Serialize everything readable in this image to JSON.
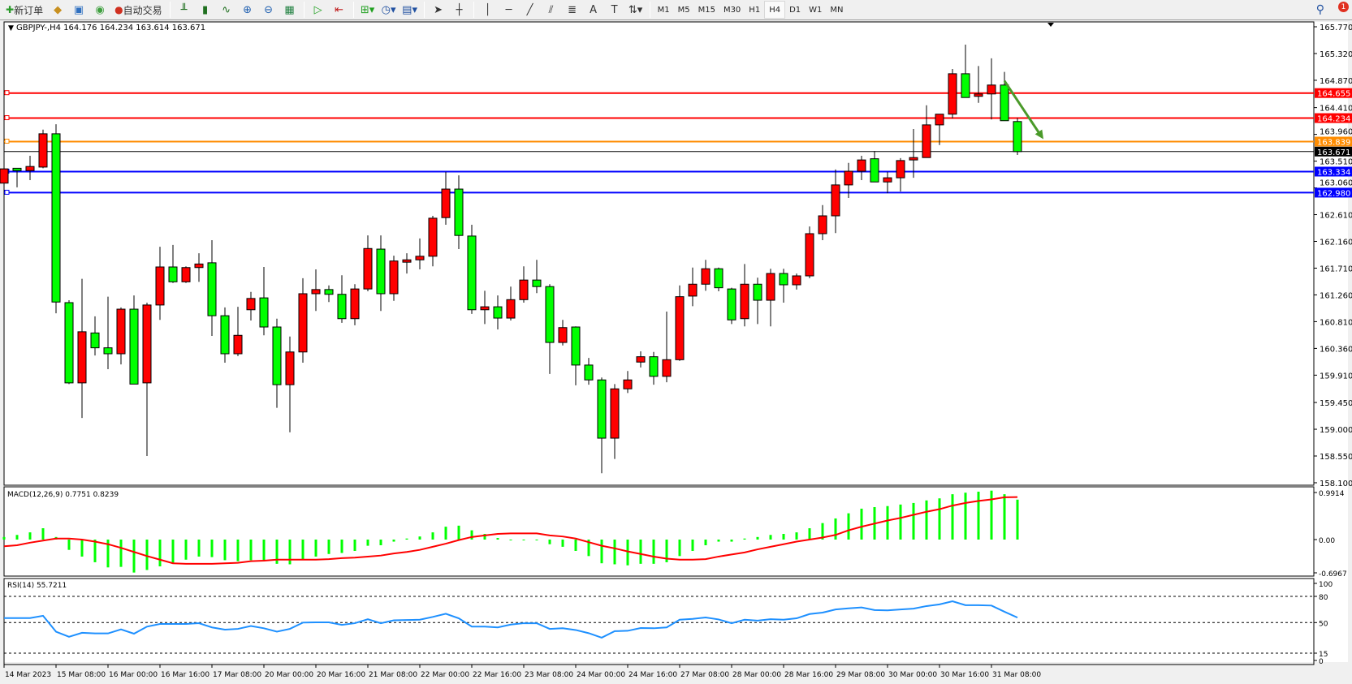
{
  "toolbar": {
    "new_order": "新订单",
    "auto_trading": "自动交易",
    "icons": [
      "new-order-icon",
      "meta-editor-icon",
      "navigator-icon",
      "signal-icon",
      "auto-trading-icon",
      "bar-chart-icon",
      "candlestick-icon",
      "line-chart-icon",
      "zoom-in-icon",
      "zoom-out-icon",
      "tile-windows-icon",
      "auto-scroll-icon",
      "chart-shift-icon",
      "indicators-icon",
      "periods-icon",
      "templates-icon",
      "cursor-icon",
      "crosshair-icon",
      "vertical-line-icon",
      "horizontal-line-icon",
      "trendline-icon",
      "equidistant-channel-icon",
      "fibonacci-icon",
      "text-icon",
      "text-label-icon",
      "arrows-icon"
    ],
    "timeframes": [
      "M1",
      "M5",
      "M15",
      "M30",
      "H1",
      "H4",
      "D1",
      "W1",
      "MN"
    ],
    "active_timeframe": "H4",
    "notification_count": "1"
  },
  "chart": {
    "header": "GBPJPY-,H4  164.176 164.234 163.614 163.671",
    "symbol": "GBPJPY-",
    "timeframe": "H4",
    "up_color": "#ff0000",
    "down_color": "#00ff00"
  },
  "chart_data": [
    {
      "type": "candlestick",
      "title": "GBPJPY-,H4",
      "ylim": [
        158.1,
        165.77
      ],
      "y_ticks": [
        "165.770",
        "165.320",
        "164.870",
        "164.410",
        "163.960",
        "163.510",
        "163.060",
        "162.610",
        "162.160",
        "161.710",
        "161.260",
        "160.810",
        "160.360",
        "159.910",
        "159.450",
        "159.000",
        "158.550",
        "158.100"
      ],
      "x_ticks": [
        "14 Mar 2023",
        "15 Mar 08:00",
        "16 Mar 00:00",
        "16 Mar 16:00",
        "17 Mar 08:00",
        "20 Mar 00:00",
        "20 Mar 16:00",
        "21 Mar 08:00",
        "22 Mar 00:00",
        "22 Mar 16:00",
        "23 Mar 08:00",
        "24 Mar 00:00",
        "24 Mar 16:00",
        "27 Mar 08:00",
        "28 Mar 00:00",
        "28 Mar 16:00",
        "29 Mar 08:00",
        "30 Mar 00:00",
        "30 Mar 16:00",
        "31 Mar 08:00"
      ],
      "ohlc": [
        [
          163.14,
          163.6,
          163.12,
          163.38
        ],
        [
          163.39,
          163.39,
          163.07,
          163.35
        ],
        [
          163.35,
          163.6,
          163.19,
          163.42
        ],
        [
          163.41,
          164.04,
          163.39,
          163.97
        ],
        [
          163.97,
          164.13,
          160.95,
          161.14
        ],
        [
          161.13,
          161.17,
          159.76,
          159.78
        ],
        [
          159.78,
          161.53,
          159.19,
          160.64
        ],
        [
          160.62,
          160.9,
          160.24,
          160.37
        ],
        [
          160.37,
          161.23,
          160.01,
          160.27
        ],
        [
          160.27,
          161.05,
          160.09,
          161.02
        ],
        [
          161.02,
          161.25,
          159.76,
          159.76
        ],
        [
          159.78,
          161.13,
          158.55,
          161.09
        ],
        [
          161.09,
          162.07,
          160.84,
          161.73
        ],
        [
          161.73,
          162.1,
          161.46,
          161.48
        ],
        [
          161.48,
          161.74,
          161.46,
          161.72
        ],
        [
          161.72,
          161.96,
          161.48,
          161.78
        ],
        [
          161.8,
          162.18,
          160.57,
          160.91
        ],
        [
          160.91,
          161.05,
          160.12,
          160.27
        ],
        [
          160.27,
          161.06,
          160.23,
          160.58
        ],
        [
          161.01,
          161.31,
          160.83,
          161.2
        ],
        [
          161.21,
          161.73,
          160.58,
          160.72
        ],
        [
          160.72,
          160.86,
          159.36,
          159.75
        ],
        [
          159.75,
          160.56,
          158.95,
          160.3
        ],
        [
          160.3,
          161.54,
          160.12,
          161.28
        ],
        [
          161.28,
          161.69,
          160.99,
          161.35
        ],
        [
          161.35,
          161.42,
          161.14,
          161.27
        ],
        [
          161.27,
          161.59,
          160.79,
          160.86
        ],
        [
          160.86,
          161.44,
          160.75,
          161.36
        ],
        [
          161.36,
          162.26,
          161.32,
          162.04
        ],
        [
          162.03,
          162.26,
          160.99,
          161.28
        ],
        [
          161.28,
          161.92,
          161.16,
          161.83
        ],
        [
          161.81,
          161.96,
          161.62,
          161.85
        ],
        [
          161.85,
          162.21,
          161.69,
          161.91
        ],
        [
          161.91,
          162.59,
          161.74,
          162.55
        ],
        [
          162.56,
          163.33,
          162.44,
          163.04
        ],
        [
          163.04,
          163.27,
          162.03,
          162.26
        ],
        [
          162.25,
          162.44,
          160.94,
          161.01
        ],
        [
          161.01,
          161.33,
          160.77,
          161.06
        ],
        [
          161.06,
          161.25,
          160.68,
          160.87
        ],
        [
          160.87,
          161.4,
          160.83,
          161.18
        ],
        [
          161.18,
          161.74,
          161.13,
          161.51
        ],
        [
          161.51,
          161.85,
          161.29,
          161.4
        ],
        [
          161.4,
          161.44,
          159.93,
          160.46
        ],
        [
          160.46,
          160.84,
          160.41,
          160.71
        ],
        [
          160.72,
          160.73,
          159.74,
          160.08
        ],
        [
          160.08,
          160.2,
          159.75,
          159.83
        ],
        [
          159.83,
          159.87,
          158.26,
          158.85
        ],
        [
          158.85,
          159.76,
          158.5,
          159.68
        ],
        [
          159.68,
          159.98,
          159.61,
          159.83
        ],
        [
          160.13,
          160.31,
          160.04,
          160.22
        ],
        [
          160.22,
          160.3,
          159.75,
          159.89
        ],
        [
          159.89,
          160.98,
          159.79,
          160.17
        ],
        [
          160.17,
          161.42,
          160.15,
          161.23
        ],
        [
          161.24,
          161.72,
          161.07,
          161.44
        ],
        [
          161.44,
          161.85,
          161.33,
          161.7
        ],
        [
          161.7,
          161.72,
          161.32,
          161.38
        ],
        [
          161.36,
          161.38,
          160.77,
          160.84
        ],
        [
          160.86,
          161.78,
          160.73,
          161.44
        ],
        [
          161.44,
          161.55,
          160.77,
          161.17
        ],
        [
          161.17,
          161.7,
          160.73,
          161.62
        ],
        [
          161.62,
          161.7,
          161.13,
          161.43
        ],
        [
          161.43,
          161.62,
          161.35,
          161.58
        ],
        [
          161.58,
          162.41,
          161.54,
          162.29
        ],
        [
          162.29,
          162.77,
          162.18,
          162.59
        ],
        [
          162.59,
          163.37,
          162.3,
          163.11
        ],
        [
          163.11,
          163.48,
          162.89,
          163.34
        ],
        [
          163.34,
          163.6,
          163.19,
          163.53
        ],
        [
          163.55,
          163.68,
          163.16,
          163.16
        ],
        [
          163.16,
          163.33,
          162.97,
          163.23
        ],
        [
          163.23,
          163.56,
          163.0,
          163.52
        ],
        [
          163.53,
          164.05,
          163.23,
          163.57
        ],
        [
          163.57,
          164.45,
          163.57,
          164.12
        ],
        [
          164.12,
          164.3,
          163.78,
          164.3
        ],
        [
          164.3,
          165.06,
          164.23,
          164.98
        ],
        [
          164.98,
          165.47,
          164.58,
          164.58
        ],
        [
          164.6,
          165.11,
          164.49,
          164.64
        ],
        [
          164.64,
          165.24,
          164.21,
          164.79
        ],
        [
          164.79,
          165.01,
          164.19,
          164.19
        ],
        [
          164.176,
          164.234,
          163.614,
          163.671
        ]
      ],
      "horizontal_lines": [
        {
          "price": "164.655",
          "color": "#ff0000"
        },
        {
          "price": "164.234",
          "color": "#ff0000"
        },
        {
          "price": "163.839",
          "color": "#ff8c00"
        },
        {
          "price": "163.334",
          "color": "#0000ff"
        },
        {
          "price": "162.980",
          "color": "#0000ff"
        }
      ],
      "current_price": {
        "price": "163.671",
        "color": "#000000"
      },
      "annotation": {
        "type": "arrow",
        "color": "#4a9a2a",
        "from_bar": 77,
        "from_price": 164.86,
        "to_bar": 80,
        "to_price": 163.88
      }
    },
    {
      "type": "bar+line",
      "title": "MACD(12,26,9) 0.7751 0.8239",
      "ylim": [
        -0.6967,
        0.9914
      ],
      "y_ticks": [
        "0.9914",
        "0.00",
        "-0.6967"
      ],
      "histogram_color": "#00ff00",
      "signal_color": "#ff0000",
      "histogram": [
        0.05,
        0.09,
        0.14,
        0.22,
        0.05,
        -0.2,
        -0.33,
        -0.44,
        -0.54,
        -0.53,
        -0.64,
        -0.59,
        -0.52,
        -0.45,
        -0.39,
        -0.33,
        -0.34,
        -0.4,
        -0.42,
        -0.4,
        -0.4,
        -0.47,
        -0.48,
        -0.39,
        -0.33,
        -0.28,
        -0.26,
        -0.22,
        -0.12,
        -0.11,
        -0.04,
        0.02,
        0.06,
        0.14,
        0.25,
        0.27,
        0.18,
        0.11,
        0.03,
        -0.01,
        -0.01,
        0.0,
        -0.09,
        -0.14,
        -0.22,
        -0.32,
        -0.46,
        -0.48,
        -0.5,
        -0.47,
        -0.47,
        -0.44,
        -0.32,
        -0.22,
        -0.11,
        -0.04,
        -0.04,
        0.02,
        0.05,
        0.09,
        0.11,
        0.14,
        0.22,
        0.32,
        0.41,
        0.51,
        0.6,
        0.63,
        0.65,
        0.68,
        0.71,
        0.76,
        0.8,
        0.88,
        0.91,
        0.93,
        0.95,
        0.88,
        0.7751
      ],
      "signal": [
        -0.13,
        -0.11,
        -0.06,
        -0.02,
        0.02,
        0.02,
        0.0,
        -0.04,
        -0.09,
        -0.16,
        -0.24,
        -0.32,
        -0.39,
        -0.46,
        -0.47,
        -0.47,
        -0.47,
        -0.46,
        -0.45,
        -0.42,
        -0.41,
        -0.39,
        -0.39,
        -0.39,
        -0.39,
        -0.38,
        -0.36,
        -0.35,
        -0.33,
        -0.31,
        -0.27,
        -0.24,
        -0.2,
        -0.14,
        -0.08,
        -0.01,
        0.05,
        0.08,
        0.11,
        0.12,
        0.12,
        0.12,
        0.08,
        0.06,
        0.02,
        -0.05,
        -0.12,
        -0.17,
        -0.23,
        -0.28,
        -0.33,
        -0.37,
        -0.39,
        -0.39,
        -0.38,
        -0.33,
        -0.29,
        -0.25,
        -0.19,
        -0.14,
        -0.09,
        -0.04,
        0.0,
        0.04,
        0.09,
        0.18,
        0.25,
        0.31,
        0.37,
        0.42,
        0.48,
        0.54,
        0.59,
        0.66,
        0.71,
        0.75,
        0.78,
        0.82,
        0.8239
      ]
    },
    {
      "type": "line",
      "title": "RSI(14) 55.7211",
      "ylim": [
        0,
        100
      ],
      "y_ticks": [
        "100",
        "80",
        "50",
        "15",
        "0"
      ],
      "levels": [
        80,
        50,
        15
      ],
      "line_color": "#1e90ff",
      "values": [
        55.2,
        55.2,
        55.2,
        57.8,
        39.6,
        33.7,
        38.3,
        37.6,
        37.6,
        42.2,
        37.3,
        45.4,
        48.4,
        48.4,
        48.4,
        49.3,
        44.5,
        41.9,
        42.8,
        46.1,
        43.5,
        39.6,
        42.8,
        50.0,
        50.3,
        50.3,
        47.4,
        49.3,
        53.9,
        49.3,
        52.6,
        52.9,
        53.3,
        56.5,
        60.1,
        54.9,
        45.4,
        45.4,
        44.5,
        47.7,
        49.3,
        49.3,
        42.8,
        43.5,
        41.5,
        37.9,
        32.7,
        40.2,
        40.6,
        43.8,
        43.5,
        44.5,
        53.3,
        54.2,
        55.9,
        53.6,
        49.3,
        53.3,
        52.3,
        53.9,
        53.3,
        54.9,
        59.8,
        61.4,
        65.0,
        66.3,
        67.3,
        64.3,
        64.0,
        65.0,
        66.0,
        68.9,
        70.8,
        74.4,
        69.9,
        69.9,
        69.5,
        62.4,
        55.7211
      ]
    }
  ]
}
